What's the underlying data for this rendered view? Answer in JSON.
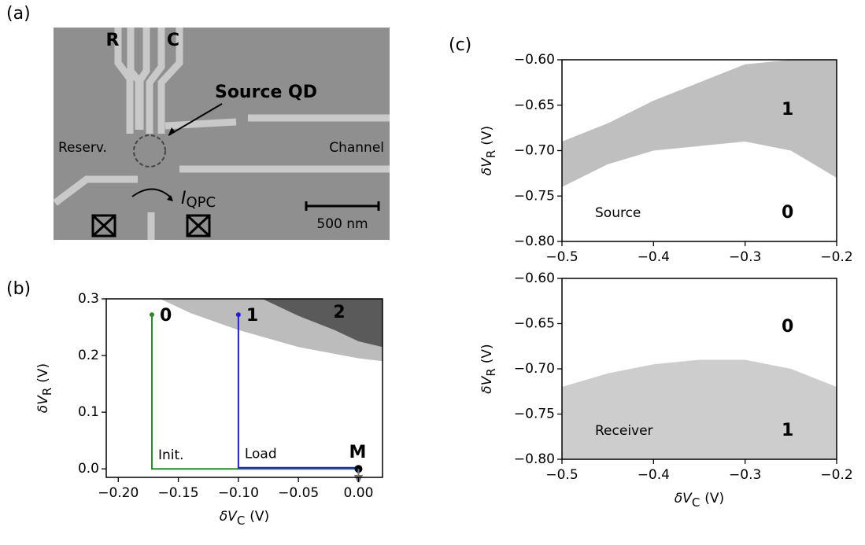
{
  "panel_labels": [
    "(a)",
    "(b)",
    "(c)"
  ],
  "micrograph": {
    "gate_labels": [
      "R",
      "C"
    ],
    "annotation": "Source QD",
    "left_label": "Reserv.",
    "right_label": "Channel",
    "current_symbol": "I",
    "current_subscript": "QPC",
    "scale_bar": "500 nm"
  },
  "chart_data": [
    {
      "type": "charge-diagram",
      "xlabel": {
        "symbol": "δV",
        "subscript": "C",
        "unit": "(V)"
      },
      "ylabel": {
        "symbol": "δV",
        "subscript": "R",
        "unit": "(V)"
      },
      "xlim": [
        -0.21,
        0.02
      ],
      "ylim": [
        -0.015,
        0.3
      ],
      "xticks": [
        {
          "value": -0.2,
          "label": "−0.20"
        },
        {
          "value": -0.15,
          "label": "−0.15"
        },
        {
          "value": -0.1,
          "label": "−0.10"
        },
        {
          "value": -0.05,
          "label": "−0.05"
        },
        {
          "value": 0,
          "label": "0.00"
        }
      ],
      "yticks": [
        {
          "value": 0,
          "label": "0.0"
        },
        0.1,
        0.2,
        0.3
      ],
      "regions": [
        {
          "color": "#bcbcbc",
          "x": [
            -0.165,
            -0.14,
            -0.1,
            -0.05,
            0,
            0.02
          ],
          "y": [
            0.3,
            0.275,
            0.245,
            0.215,
            0.195,
            0.19
          ]
        },
        {
          "name": "2",
          "color": "#5a5a5a",
          "x": [
            -0.08,
            -0.05,
            -0.02,
            0,
            0.02
          ],
          "y": [
            0.3,
            0.27,
            0.245,
            0.225,
            0.215
          ]
        }
      ],
      "series": [
        {
          "name": "Init.",
          "state": "0",
          "color": "#2a8a2a",
          "x": [
            -0.172,
            -0.172,
            0
          ],
          "y": [
            0.272,
            0,
            0
          ]
        },
        {
          "name": "Load",
          "state": "1",
          "color": "#1f1fd6",
          "x": [
            -0.1,
            -0.1,
            0
          ],
          "y": [
            0.272,
            0.002,
            0.002
          ]
        }
      ],
      "measure_point": {
        "label": "M",
        "x": 0,
        "y": 0,
        "color": "#000000"
      }
    },
    {
      "type": "histogram2d",
      "label": "Source",
      "empty_state": "0",
      "ylabel": {
        "symbol": "δV",
        "subscript": "R",
        "unit": "(V)"
      },
      "xlim": [
        -0.5,
        -0.2
      ],
      "ylim": [
        -0.8,
        -0.6
      ],
      "xticks": [
        {
          "value": -0.5,
          "label": "−0.5"
        },
        {
          "value": -0.4,
          "label": "−0.4"
        },
        {
          "value": -0.3,
          "label": "−0.3"
        },
        {
          "value": -0.2,
          "label": "−0.2"
        }
      ],
      "yticks": [
        {
          "value": -0.6,
          "label": "−0.60"
        },
        {
          "value": -0.65,
          "label": "−0.65"
        },
        {
          "value": -0.7,
          "label": "−0.70"
        },
        {
          "value": -0.75,
          "label": "−0.75"
        },
        {
          "value": -0.8,
          "label": "−0.80"
        }
      ],
      "band": {
        "state": "1",
        "color": "#b4b4b4",
        "x": [
          -0.5,
          -0.45,
          -0.4,
          -0.35,
          -0.3,
          -0.25,
          -0.2
        ],
        "upper": [
          -0.69,
          -0.67,
          -0.645,
          -0.625,
          -0.605,
          -0.6,
          -0.6
        ],
        "lower": [
          -0.74,
          -0.715,
          -0.7,
          -0.695,
          -0.69,
          -0.7,
          -0.73
        ]
      }
    },
    {
      "type": "histogram2d",
      "label": "Receiver",
      "empty_state": "0",
      "xlabel": {
        "symbol": "δV",
        "subscript": "C",
        "unit": "(V)"
      },
      "ylabel": {
        "symbol": "δV",
        "subscript": "R",
        "unit": "(V)"
      },
      "xlim": [
        -0.5,
        -0.2
      ],
      "ylim": [
        -0.8,
        -0.6
      ],
      "xticks": [
        {
          "value": -0.5,
          "label": "−0.5"
        },
        {
          "value": -0.4,
          "label": "−0.4"
        },
        {
          "value": -0.3,
          "label": "−0.3"
        },
        {
          "value": -0.2,
          "label": "−0.2"
        }
      ],
      "yticks": [
        {
          "value": -0.6,
          "label": "−0.60"
        },
        {
          "value": -0.65,
          "label": "−0.65"
        },
        {
          "value": -0.7,
          "label": "−0.70"
        },
        {
          "value": -0.75,
          "label": "−0.75"
        },
        {
          "value": -0.8,
          "label": "−0.80"
        }
      ],
      "band": {
        "state": "1",
        "color": "#c4c4c4",
        "x": [
          -0.5,
          -0.45,
          -0.4,
          -0.35,
          -0.3,
          -0.25,
          -0.2
        ],
        "upper": [
          -0.72,
          -0.705,
          -0.695,
          -0.69,
          -0.69,
          -0.7,
          -0.72
        ],
        "lower": [
          -0.8,
          -0.8,
          -0.8,
          -0.8,
          -0.8,
          -0.8,
          -0.8
        ]
      }
    }
  ]
}
